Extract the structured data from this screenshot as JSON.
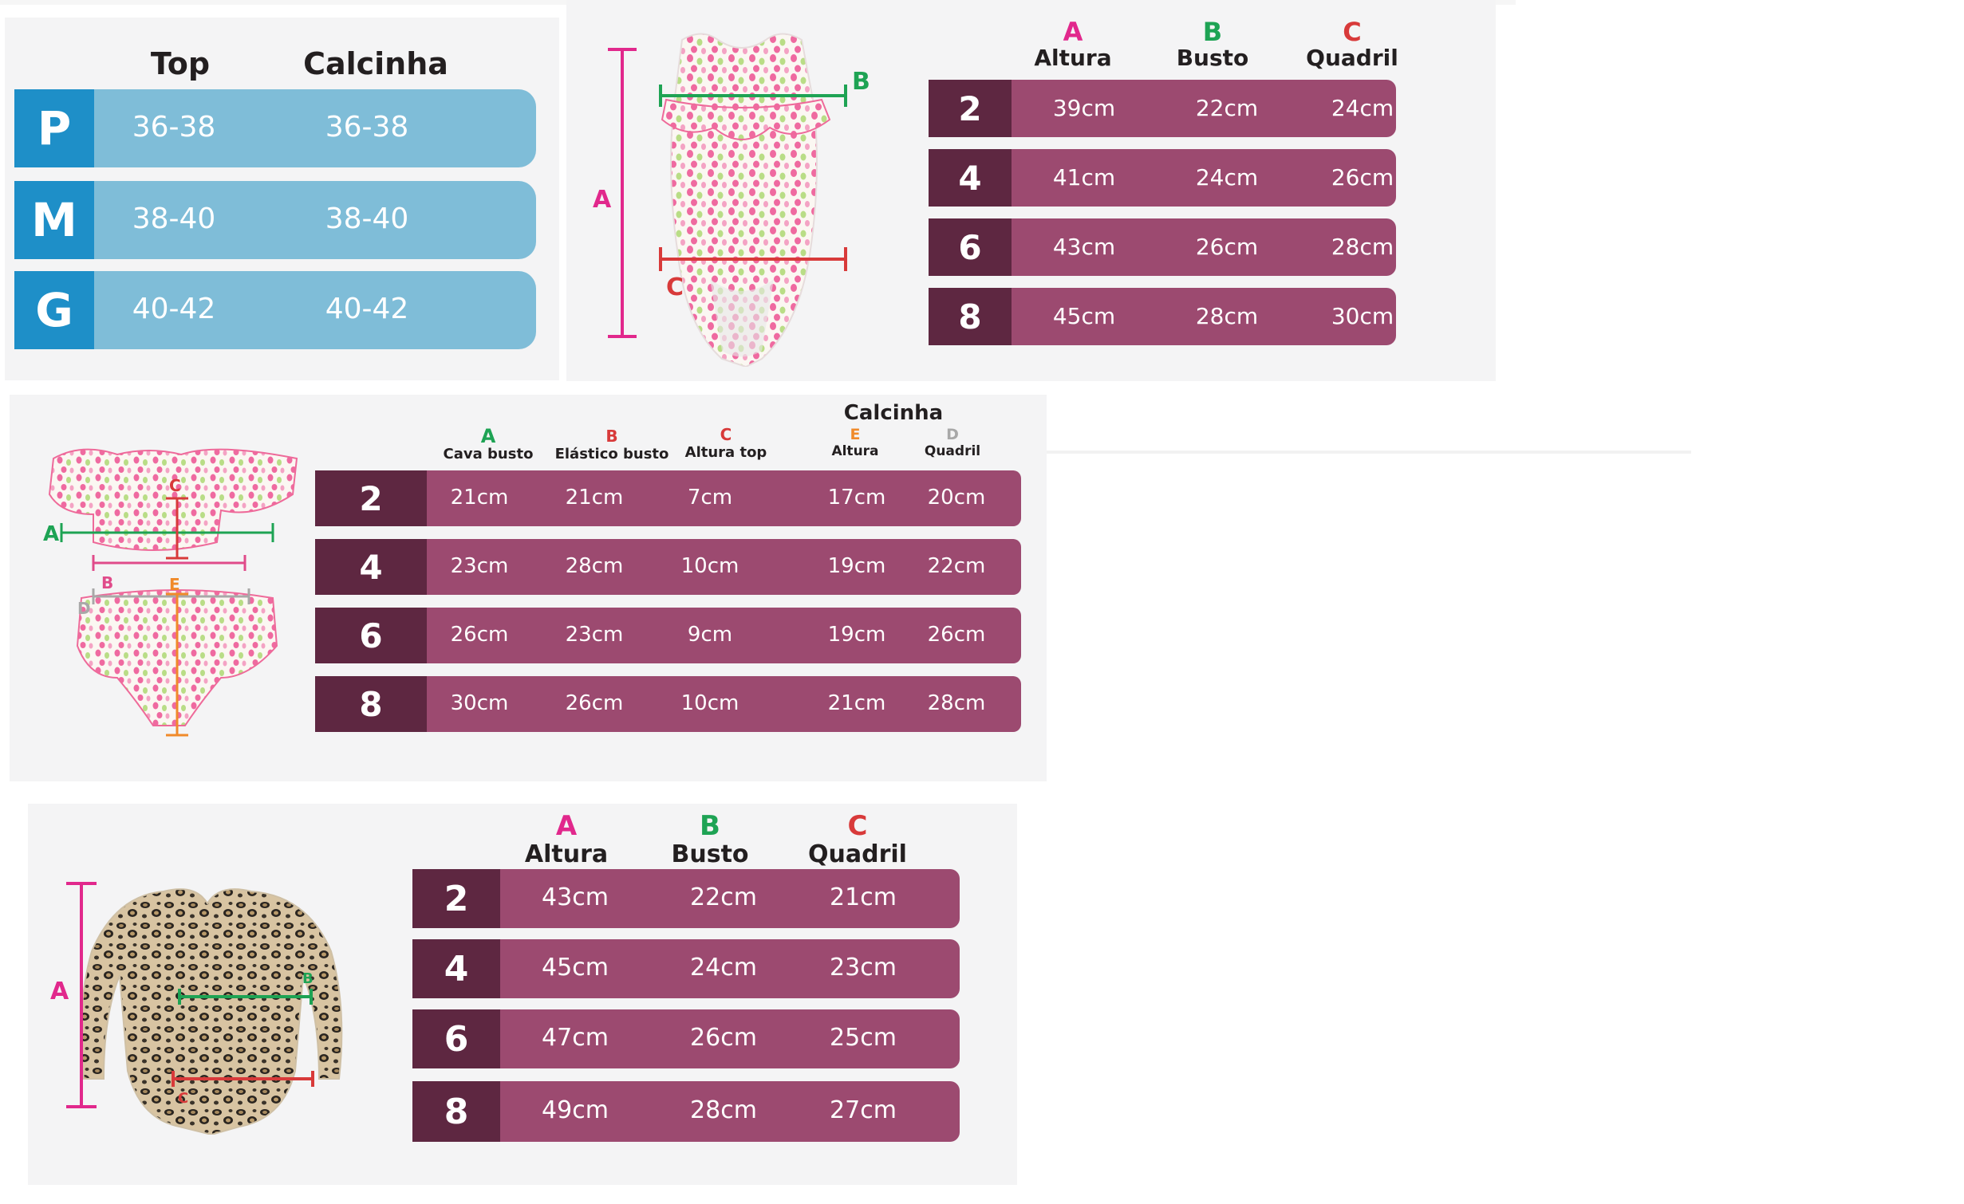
{
  "colors": {
    "pink": "#e1288c",
    "green": "#1ea354",
    "red": "#d83a3a",
    "orange": "#f08a2a",
    "gray": "#a8a8a8",
    "blue_size": "#1e8fc8",
    "blue_row": "#7fbdd8",
    "size_dark": "#5e2741",
    "row_magenta": "#9c4a70"
  },
  "table1": {
    "headers": [
      "Top",
      "Calcinha"
    ],
    "rows": [
      {
        "size": "P",
        "top": "36-38",
        "calcinha": "36-38"
      },
      {
        "size": "M",
        "top": "38-40",
        "calcinha": "38-40"
      },
      {
        "size": "G",
        "top": "40-42",
        "calcinha": "40-42"
      }
    ]
  },
  "table2": {
    "figure": {
      "icon": "polka-dot-swimsuit",
      "label_a": "A",
      "label_b": "B",
      "label_c": "C"
    },
    "headers": [
      {
        "letter": "A",
        "label": "Altura"
      },
      {
        "letter": "B",
        "label": "Busto"
      },
      {
        "letter": "C",
        "label": "Quadril"
      }
    ],
    "rows": [
      {
        "size": "2",
        "values": [
          "39cm",
          "22cm",
          "24cm"
        ]
      },
      {
        "size": "4",
        "values": [
          "41cm",
          "24cm",
          "26cm"
        ]
      },
      {
        "size": "6",
        "values": [
          "43cm",
          "26cm",
          "28cm"
        ]
      },
      {
        "size": "8",
        "values": [
          "45cm",
          "28cm",
          "30cm"
        ]
      }
    ]
  },
  "table3": {
    "figure": {
      "icon": "polka-dot-bikini",
      "label_a": "A",
      "label_b": "B",
      "label_c": "C",
      "label_d": "D",
      "label_e": "E"
    },
    "group_label": "Calcinha",
    "headers": [
      {
        "letter": "A",
        "label": "Cava busto"
      },
      {
        "letter": "B",
        "label": "Elástico busto"
      },
      {
        "letter": "C",
        "label": "Altura top"
      },
      {
        "letter": "E",
        "label": "Altura"
      },
      {
        "letter": "D",
        "label": "Quadril"
      }
    ],
    "rows": [
      {
        "size": "2",
        "values": [
          "21cm",
          "21cm",
          "7cm",
          "17cm",
          "20cm"
        ]
      },
      {
        "size": "4",
        "values": [
          "23cm",
          "28cm",
          "10cm",
          "19cm",
          "22cm"
        ]
      },
      {
        "size": "6",
        "values": [
          "26cm",
          "23cm",
          "9cm",
          "19cm",
          "26cm"
        ]
      },
      {
        "size": "8",
        "values": [
          "30cm",
          "26cm",
          "10cm",
          "21cm",
          "28cm"
        ]
      }
    ]
  },
  "table4": {
    "figure": {
      "icon": "leopard-print-long-sleeve-swimsuit",
      "label_a": "A",
      "label_b": "B",
      "label_c": "C"
    },
    "headers": [
      {
        "letter": "A",
        "label": "Altura"
      },
      {
        "letter": "B",
        "label": "Busto"
      },
      {
        "letter": "C",
        "label": "Quadril"
      }
    ],
    "rows": [
      {
        "size": "2",
        "values": [
          "43cm",
          "22cm",
          "21cm"
        ]
      },
      {
        "size": "4",
        "values": [
          "45cm",
          "24cm",
          "23cm"
        ]
      },
      {
        "size": "6",
        "values": [
          "47cm",
          "26cm",
          "25cm"
        ]
      },
      {
        "size": "8",
        "values": [
          "49cm",
          "28cm",
          "27cm"
        ]
      }
    ]
  }
}
